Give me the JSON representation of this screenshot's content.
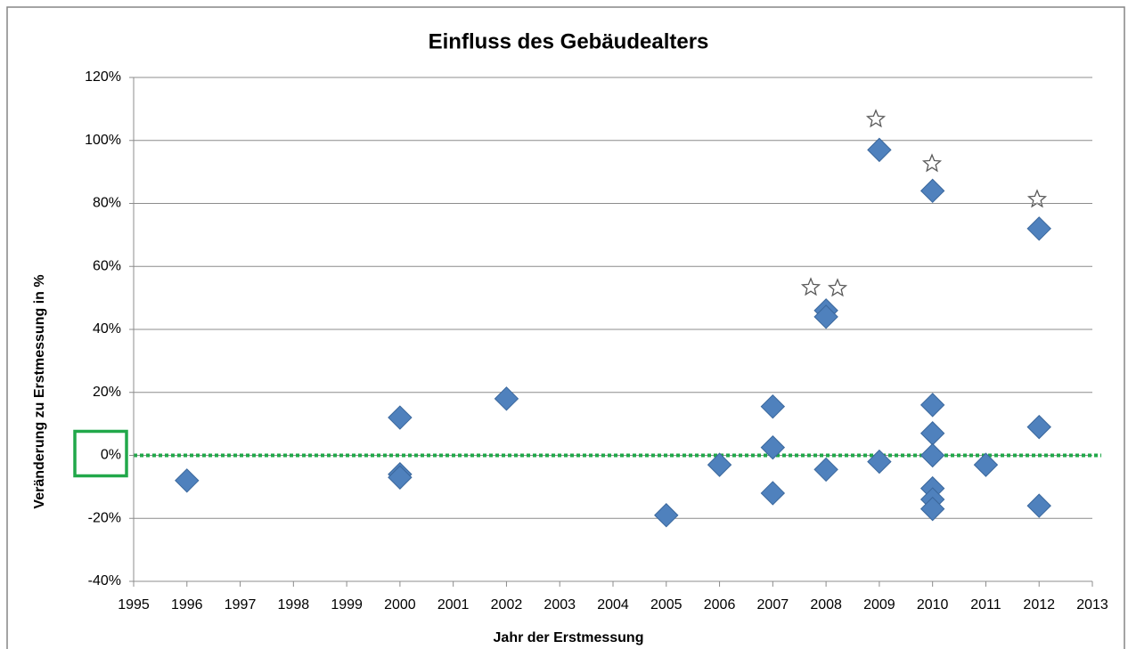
{
  "chart_data": {
    "type": "scatter",
    "title": "Einfluss des Gebäudealters",
    "x_label": "Jahr der Erstmessung",
    "y_label": "Veränderung zu Erstmessung in %",
    "series": [
      {
        "color": "#4f81bd",
        "x": [
          1996,
          2000,
          2000,
          2000,
          2002,
          2005,
          2006,
          2007,
          2007,
          2007,
          2008,
          2008,
          2008,
          2009,
          2009,
          2010,
          2010,
          2010,
          2010,
          2010,
          2010,
          2010,
          2011,
          2012,
          2012,
          2012
        ],
        "values": [
          -8,
          12,
          -6,
          -7,
          18,
          -19,
          -3,
          15.5,
          2.5,
          -12,
          46,
          44,
          -4.5,
          97,
          -2,
          84,
          16,
          7,
          0,
          -10.5,
          -14,
          -17,
          -3,
          72,
          9,
          -16
        ]
      }
    ],
    "xlim": [
      1995,
      2013
    ],
    "xticks": [
      1995,
      1996,
      1997,
      1998,
      1999,
      2000,
      2001,
      2002,
      2003,
      2004,
      2005,
      2006,
      2007,
      2008,
      2009,
      2010,
      2011,
      2012,
      2013
    ],
    "ylim": [
      -40,
      120
    ],
    "yticks": [
      {
        "value": -40,
        "label": "-40%"
      },
      {
        "value": -20,
        "label": "-20%"
      },
      {
        "value": 0,
        "label": "0%"
      },
      {
        "value": 20,
        "label": "20%"
      },
      {
        "value": 40,
        "label": "40%"
      },
      {
        "value": 60,
        "label": "60%"
      },
      {
        "value": 80,
        "label": "80%"
      },
      {
        "value": 100,
        "label": "100%"
      },
      {
        "value": 120,
        "label": "120%"
      }
    ],
    "grid": true
  }
}
